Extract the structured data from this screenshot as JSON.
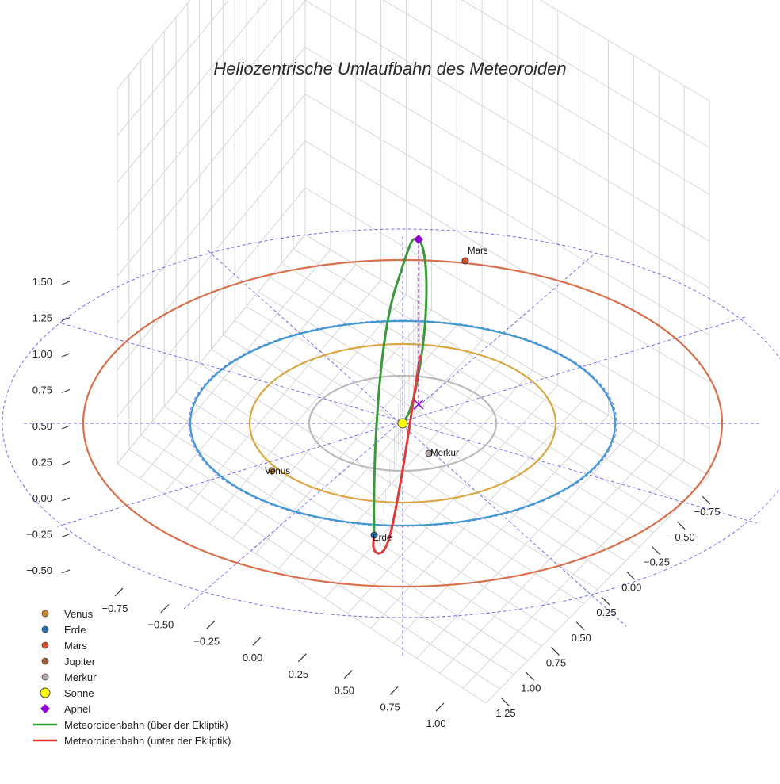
{
  "chart_data": {
    "type": "scatter3d",
    "title": "Heliozentrische Umlaufbahn des Meteoroiden",
    "axes": {
      "x_ticks": [
        "−0.75",
        "−0.50",
        "−0.25",
        "0.00",
        "0.25",
        "0.50",
        "0.75",
        "1.00"
      ],
      "y_ticks": [
        "−0.75",
        "−0.50",
        "−0.25",
        "0.00",
        "0.25",
        "0.50",
        "0.75",
        "1.00",
        "1.25"
      ],
      "z_ticks": [
        "−0.50",
        "−0.25",
        "0.00",
        "0.25",
        "0.50",
        "0.75",
        "1.00",
        "1.25",
        "1.50"
      ],
      "xlim": [
        -0.85,
        1.1
      ],
      "ylim": [
        -0.85,
        1.3
      ],
      "zlim": [
        -0.55,
        1.6
      ]
    },
    "orbits": [
      {
        "name": "Merkur",
        "radius_au": 0.39,
        "color": "#bbbbbb"
      },
      {
        "name": "Venus",
        "radius_au": 0.72,
        "color": "#d9a641"
      },
      {
        "name": "Erde",
        "radius_au": 1.0,
        "color": "#3f9ad0"
      },
      {
        "name": "Mars",
        "radius_au": 1.52,
        "color": "#d8704c"
      }
    ],
    "labels": [
      {
        "text": "Mars"
      },
      {
        "text": "Merkur"
      },
      {
        "text": "Venus"
      },
      {
        "text": "Erde"
      }
    ],
    "legend": [
      {
        "label": "Venus",
        "symbol": "circle",
        "color": "#d08a2a"
      },
      {
        "label": "Erde",
        "symbol": "circle",
        "color": "#1f77b4"
      },
      {
        "label": "Mars",
        "symbol": "circle",
        "color": "#d8532a"
      },
      {
        "label": "Jupiter",
        "symbol": "circle",
        "color": "#a05a35"
      },
      {
        "label": "Merkur",
        "symbol": "circle",
        "color": "#b5a8a8"
      },
      {
        "label": "Sonne",
        "symbol": "circle-large",
        "color": "#ffff00"
      },
      {
        "label": "Aphel",
        "symbol": "diamond",
        "color": "#9400d3"
      },
      {
        "label": "Meteoroidenbahn (über der Ekliptik)",
        "symbol": "line",
        "color": "#2ca02c"
      },
      {
        "label": "Meteoroidenbahn (unter der Ekliptik)",
        "symbol": "line",
        "color": "#e8302b"
      }
    ]
  }
}
